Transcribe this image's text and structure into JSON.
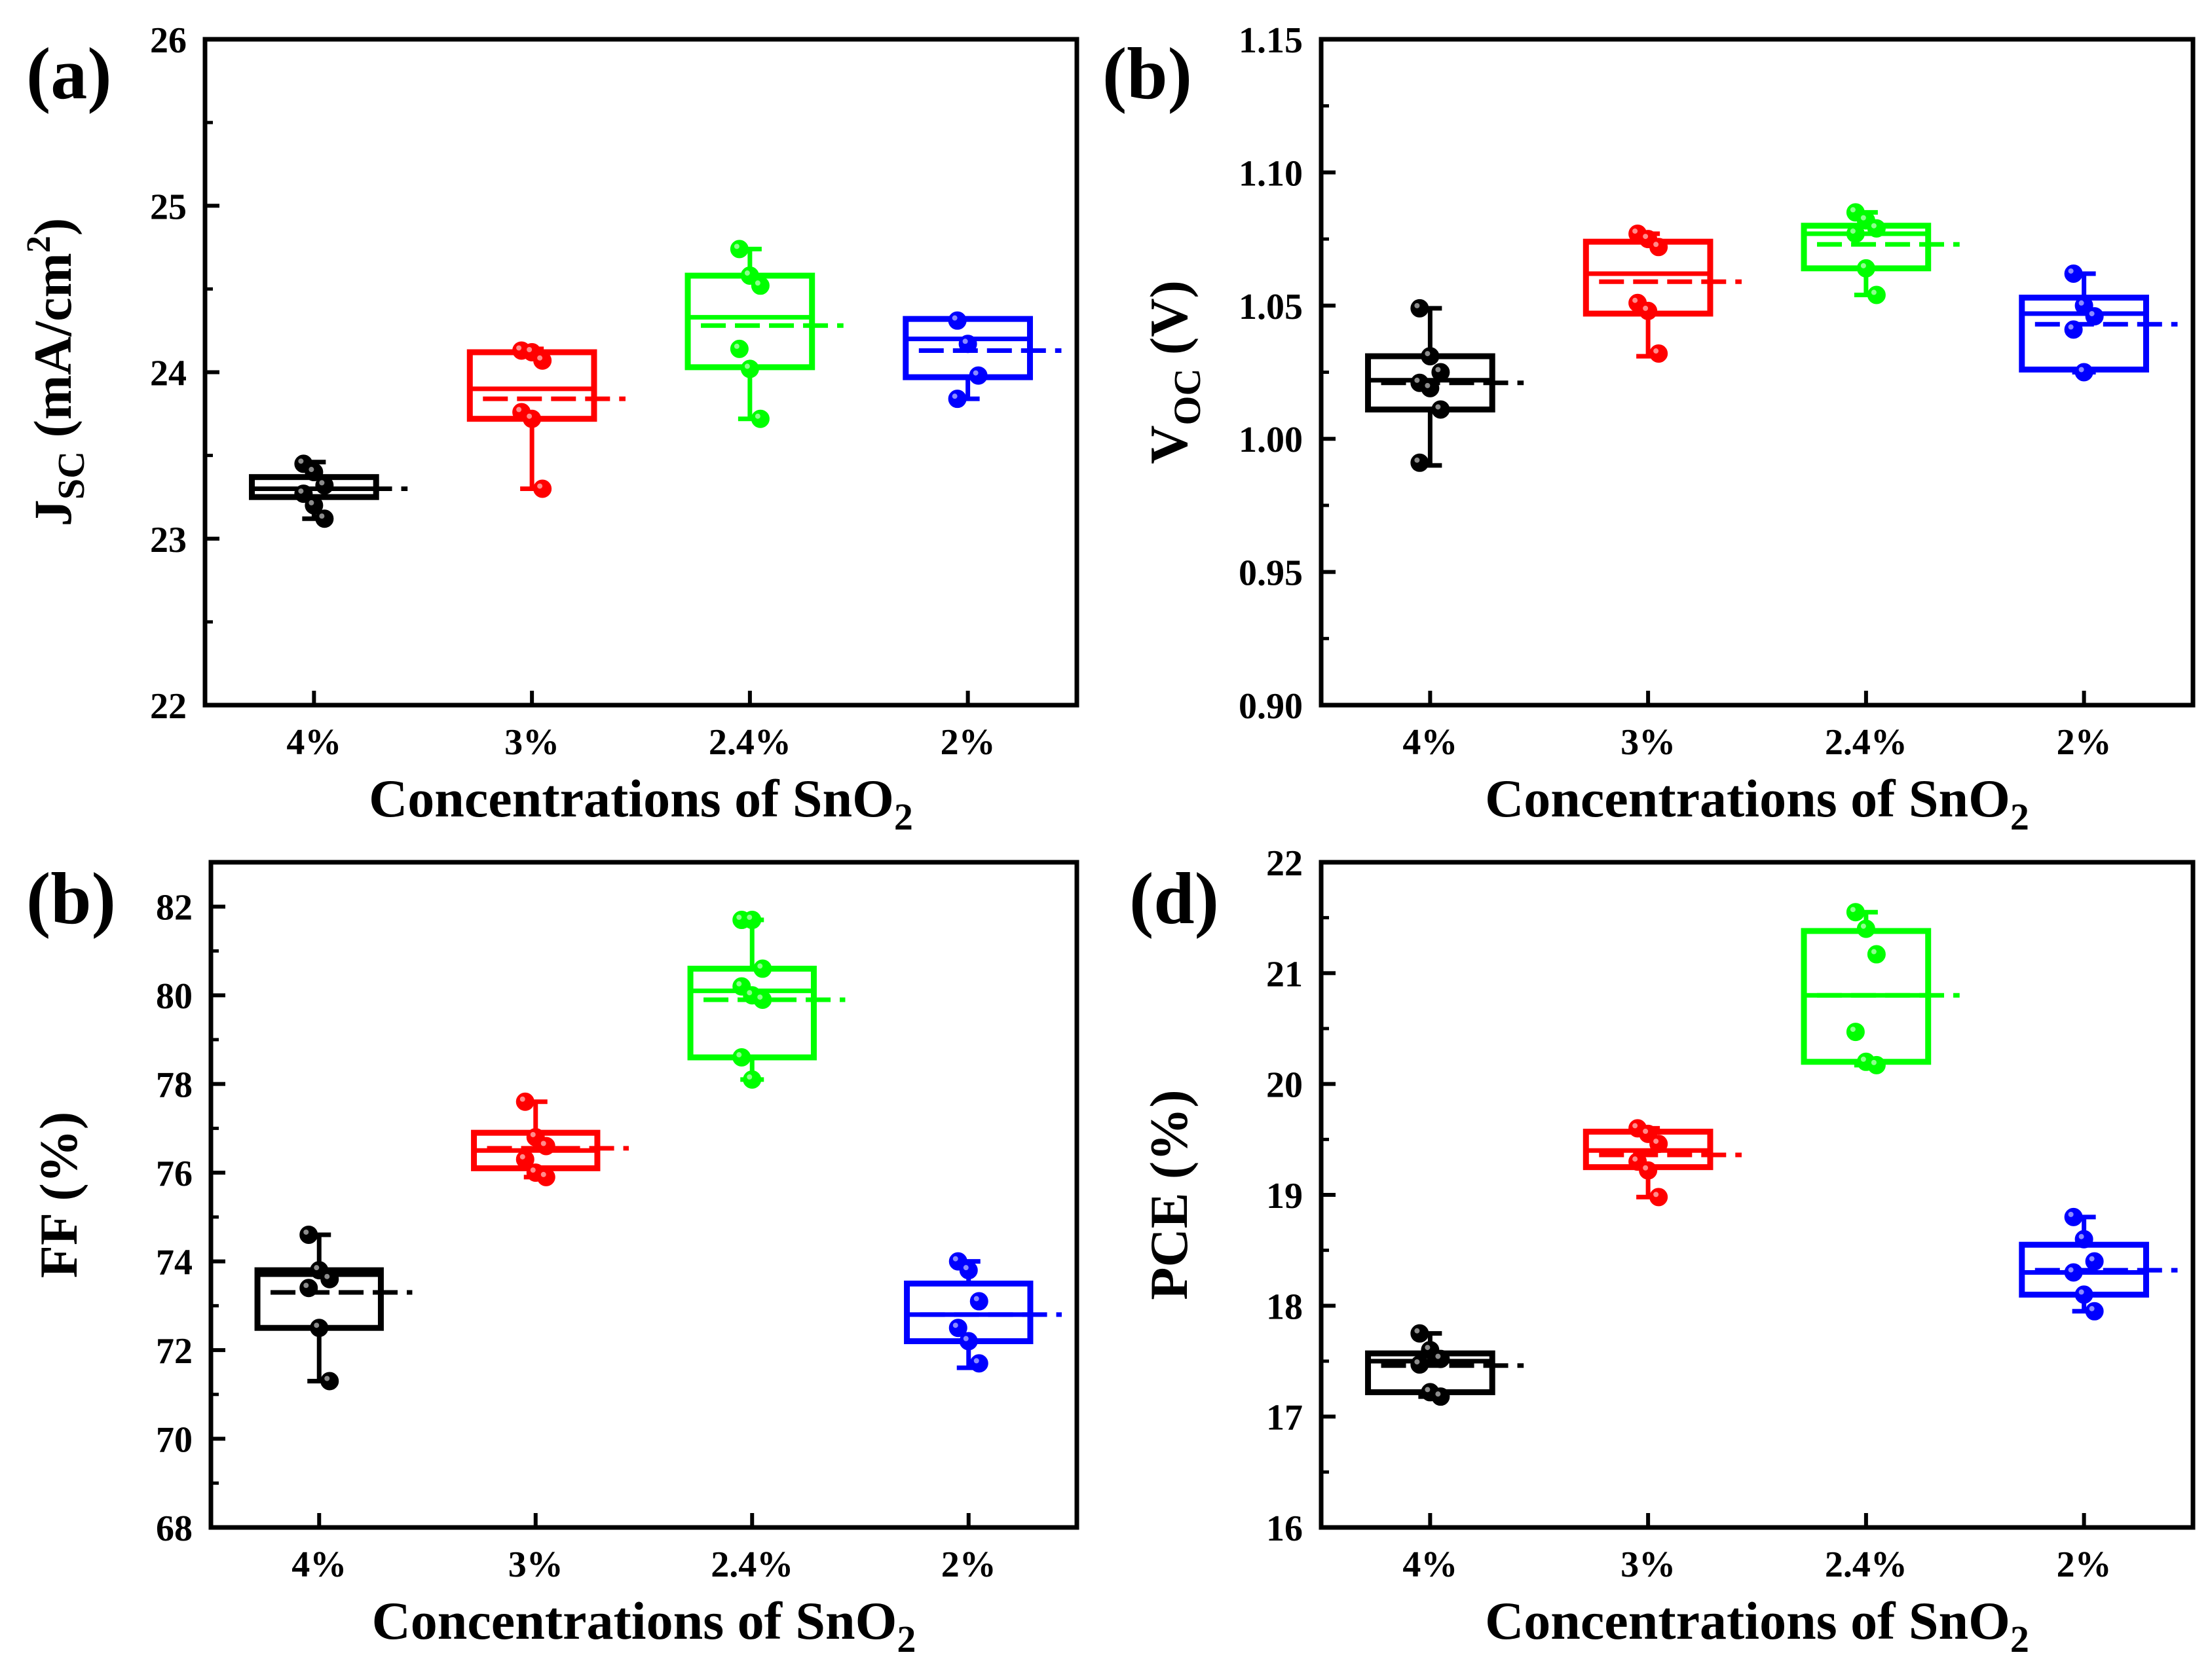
{
  "chart_data": [
    {
      "panel_label": "(a)",
      "type": "box",
      "ylabel_main": "J",
      "ylabel_sub": "SC",
      "ylabel_unit_pre": " (mA/cm",
      "ylabel_unit_sup": "2",
      "ylabel_unit_post": ")",
      "ylabel_plain": "",
      "xlabel_main": "Concentrations of SnO",
      "xlabel_sub": "2",
      "ylim": [
        22,
        26
      ],
      "yticks": [
        22,
        23,
        24,
        25,
        26
      ],
      "ytick_labels": [
        "22",
        "23",
        "24",
        "25",
        "26"
      ],
      "categories": [
        "4%",
        "3%",
        "2.4%",
        "2%"
      ],
      "colors": [
        "#000000",
        "#ff0000",
        "#00ff00",
        "#0000ff"
      ],
      "series": [
        {
          "name": "4%",
          "q1": 23.25,
          "q3": 23.37,
          "median": 23.3,
          "mean": 23.3,
          "whisker_low": 23.12,
          "whisker_high": 23.46,
          "points": [
            23.45,
            23.4,
            23.32,
            23.27,
            23.2,
            23.12
          ]
        },
        {
          "name": "3%",
          "q1": 23.72,
          "q3": 24.12,
          "median": 23.9,
          "mean": 23.84,
          "whisker_low": 23.3,
          "whisker_high": 24.14,
          "points": [
            24.13,
            24.12,
            24.07,
            23.76,
            23.72,
            23.3
          ]
        },
        {
          "name": "2.4%",
          "q1": 24.03,
          "q3": 24.58,
          "median": 24.33,
          "mean": 24.28,
          "whisker_low": 23.72,
          "whisker_high": 24.74,
          "points": [
            24.74,
            24.58,
            24.52,
            24.14,
            24.02,
            23.72
          ]
        },
        {
          "name": "2%",
          "q1": 23.97,
          "q3": 24.32,
          "median": 24.2,
          "mean": 24.13,
          "whisker_low": 23.84,
          "whisker_high": 24.32,
          "points": [
            24.31,
            24.17,
            23.98,
            23.84
          ]
        }
      ]
    },
    {
      "panel_label": "(b)",
      "type": "box",
      "ylabel_main": "V",
      "ylabel_sub": "OC",
      "ylabel_unit_pre": " (V)",
      "ylabel_unit_sup": "",
      "ylabel_unit_post": "",
      "ylabel_plain": "",
      "xlabel_main": "Concentrations of SnO",
      "xlabel_sub": "2",
      "ylim": [
        0.9,
        1.15
      ],
      "yticks": [
        0.9,
        0.95,
        1.0,
        1.05,
        1.1,
        1.15
      ],
      "ytick_labels": [
        "0.90",
        "0.95",
        "1.00",
        "1.05",
        "1.10",
        "1.15"
      ],
      "categories": [
        "4%",
        "3%",
        "2.4%",
        "2%"
      ],
      "colors": [
        "#000000",
        "#ff0000",
        "#00ff00",
        "#0000ff"
      ],
      "series": [
        {
          "name": "4%",
          "q1": 1.011,
          "q3": 1.031,
          "median": 1.022,
          "mean": 1.021,
          "whisker_low": 0.99,
          "whisker_high": 1.049,
          "points": [
            1.049,
            1.031,
            1.025,
            1.021,
            1.019,
            1.011,
            0.991
          ]
        },
        {
          "name": "3%",
          "q1": 1.047,
          "q3": 1.074,
          "median": 1.062,
          "mean": 1.059,
          "whisker_low": 1.031,
          "whisker_high": 1.077,
          "points": [
            1.077,
            1.075,
            1.072,
            1.051,
            1.048,
            1.032
          ]
        },
        {
          "name": "2.4%",
          "q1": 1.064,
          "q3": 1.08,
          "median": 1.077,
          "mean": 1.073,
          "whisker_low": 1.054,
          "whisker_high": 1.085,
          "points": [
            1.085,
            1.082,
            1.079,
            1.077,
            1.064,
            1.054
          ]
        },
        {
          "name": "2%",
          "q1": 1.026,
          "q3": 1.053,
          "median": 1.047,
          "mean": 1.043,
          "whisker_low": 1.025,
          "whisker_high": 1.062,
          "points": [
            1.062,
            1.05,
            1.046,
            1.041,
            1.025
          ]
        }
      ]
    },
    {
      "panel_label": "(b)",
      "type": "box",
      "ylabel_main": "",
      "ylabel_sub": "",
      "ylabel_unit_pre": "",
      "ylabel_unit_sup": "",
      "ylabel_unit_post": "",
      "ylabel_plain": "FF (%)",
      "xlabel_main": "Concentrations of SnO",
      "xlabel_sub": "2",
      "ylim": [
        68,
        83
      ],
      "yticks": [
        68,
        70,
        72,
        74,
        76,
        78,
        80,
        82
      ],
      "ytick_labels": [
        "68",
        "70",
        "72",
        "74",
        "76",
        "78",
        "80",
        "82"
      ],
      "categories": [
        "4%",
        "3%",
        "2.4%",
        "2%"
      ],
      "colors": [
        "#000000",
        "#ff0000",
        "#00ff00",
        "#0000ff"
      ],
      "series": [
        {
          "name": "4%",
          "q1": 72.5,
          "q3": 73.8,
          "median": 73.7,
          "mean": 73.3,
          "whisker_low": 71.3,
          "whisker_high": 74.6,
          "points": [
            74.6,
            73.8,
            73.6,
            73.4,
            72.5,
            71.3
          ]
        },
        {
          "name": "3%",
          "q1": 76.1,
          "q3": 76.9,
          "median": 76.5,
          "mean": 76.55,
          "whisker_low": 75.9,
          "whisker_high": 77.6,
          "points": [
            77.6,
            76.8,
            76.6,
            76.3,
            76.0,
            75.9
          ]
        },
        {
          "name": "2.4%",
          "q1": 78.6,
          "q3": 80.6,
          "median": 80.1,
          "mean": 79.9,
          "whisker_low": 78.1,
          "whisker_high": 81.7,
          "points": [
            81.7,
            81.7,
            80.6,
            80.2,
            80.0,
            79.9,
            78.6,
            78.1
          ]
        },
        {
          "name": "2%",
          "q1": 72.2,
          "q3": 73.5,
          "median": 72.8,
          "mean": 72.8,
          "whisker_low": 71.6,
          "whisker_high": 74.0,
          "points": [
            74.0,
            73.8,
            73.1,
            72.5,
            72.2,
            71.7
          ]
        }
      ]
    },
    {
      "panel_label": "(d)",
      "type": "box",
      "ylabel_main": "",
      "ylabel_sub": "",
      "ylabel_unit_pre": "",
      "ylabel_unit_sup": "",
      "ylabel_unit_post": "",
      "ylabel_plain": "PCE (%)",
      "xlabel_main": "Concentrations of SnO",
      "xlabel_sub": "2",
      "ylim": [
        16,
        22
      ],
      "yticks": [
        16,
        17,
        18,
        19,
        20,
        21,
        22
      ],
      "ytick_labels": [
        "16",
        "17",
        "18",
        "19",
        "20",
        "21",
        "22"
      ],
      "categories": [
        "4%",
        "3%",
        "2.4%",
        "2%"
      ],
      "colors": [
        "#000000",
        "#ff0000",
        "#00ff00",
        "#0000ff"
      ],
      "series": [
        {
          "name": "4%",
          "q1": 17.22,
          "q3": 17.57,
          "median": 17.5,
          "mean": 17.46,
          "whisker_low": 17.18,
          "whisker_high": 17.75,
          "points": [
            17.75,
            17.6,
            17.52,
            17.47,
            17.22,
            17.18
          ]
        },
        {
          "name": "3%",
          "q1": 19.25,
          "q3": 19.57,
          "median": 19.4,
          "mean": 19.36,
          "whisker_low": 18.98,
          "whisker_high": 19.6,
          "points": [
            19.6,
            19.55,
            19.46,
            19.3,
            19.22,
            18.98
          ]
        },
        {
          "name": "2.4%",
          "q1": 20.2,
          "q3": 21.38,
          "median": 20.8,
          "mean": 20.8,
          "whisker_low": 20.17,
          "whisker_high": 21.55,
          "points": [
            21.55,
            21.4,
            21.17,
            20.47,
            20.2,
            20.17
          ]
        },
        {
          "name": "2%",
          "q1": 18.1,
          "q3": 18.55,
          "median": 18.3,
          "mean": 18.32,
          "whisker_low": 17.95,
          "whisker_high": 18.8,
          "points": [
            18.8,
            18.6,
            18.4,
            18.3,
            18.1,
            17.95
          ]
        }
      ]
    }
  ]
}
